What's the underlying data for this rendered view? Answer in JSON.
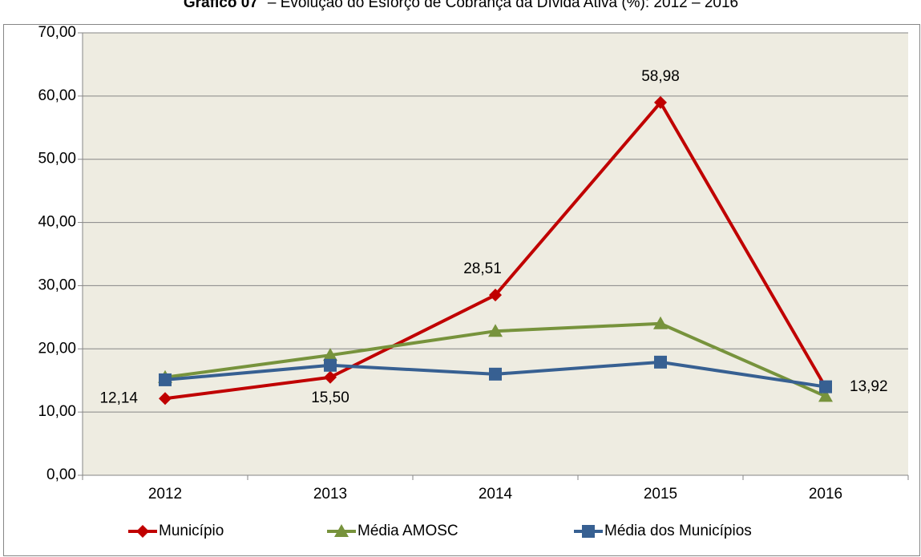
{
  "chart_data": {
    "type": "line",
    "figure_label": "Gráfico 07",
    "title": "– Evolução do Esforço de Cobrança da Dívida Ativa (%): 2012 – 2016",
    "categories": [
      "2012",
      "2013",
      "2014",
      "2015",
      "2016"
    ],
    "series": [
      {
        "name": "Município",
        "color": "#c00000",
        "marker": "diamond",
        "values": [
          12.14,
          15.5,
          28.51,
          58.98,
          13.92
        ],
        "value_labels": [
          "12,14",
          "15,50",
          "28,51",
          "58,98",
          "13,92"
        ]
      },
      {
        "name": "Média AMOSC",
        "color": "#77933c",
        "marker": "triangle",
        "values": [
          15.5,
          19.0,
          22.8,
          24.0,
          12.5
        ]
      },
      {
        "name": "Média dos Municípios",
        "color": "#376092",
        "marker": "square",
        "values": [
          15.1,
          17.4,
          16.0,
          17.9,
          14.0
        ]
      }
    ],
    "ylim": [
      0,
      70
    ],
    "yticks": [
      {
        "value": 0,
        "label": "0,00"
      },
      {
        "value": 10,
        "label": "10,00"
      },
      {
        "value": 20,
        "label": "20,00"
      },
      {
        "value": 30,
        "label": "30,00"
      },
      {
        "value": 40,
        "label": "40,00"
      },
      {
        "value": 50,
        "label": "50,00"
      },
      {
        "value": 60,
        "label": "60,00"
      },
      {
        "value": 70,
        "label": "70,00"
      }
    ],
    "grid": true,
    "legend": "bottom"
  }
}
